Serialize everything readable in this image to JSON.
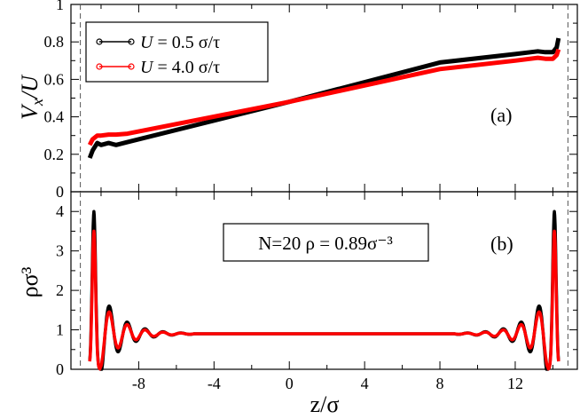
{
  "figure": {
    "xlabel": "z/σ",
    "colors": {
      "black": "#000000",
      "red": "#ff0000"
    }
  },
  "chart_data": [
    {
      "type": "line",
      "panel": "(a)",
      "ylabel_main": "V",
      "ylabel_sub": "x",
      "ylabel_tail": "/U",
      "xlim": [
        -11.6,
        15.3
      ],
      "ylim": [
        0,
        1
      ],
      "x_ticks": [
        -8,
        -4,
        0,
        4,
        8,
        12
      ],
      "y_ticks": [
        0,
        0.2,
        0.4,
        0.6,
        0.8,
        1
      ],
      "y_tick_labels": [
        "0",
        "0.2",
        "0.4",
        "0.6",
        "0.8",
        "1"
      ],
      "walls": [
        -11.1,
        14.8
      ],
      "legend": {
        "position": "top-left",
        "entries": [
          {
            "prefix": "U",
            "text": " = 0.5 σ/τ",
            "color": "#000000"
          },
          {
            "prefix": "U",
            "text": " = 4.0 σ/τ",
            "color": "#ff0000"
          }
        ]
      },
      "series": [
        {
          "name": "U = 0.5 σ/τ",
          "color": "#000000",
          "x": [
            -10.6,
            -10.45,
            -10.2,
            -10.0,
            -9.6,
            -9.2,
            -8.6,
            0,
            8,
            12,
            13.2,
            13.6,
            14.0,
            14.2,
            14.3
          ],
          "y": [
            0.18,
            0.22,
            0.26,
            0.25,
            0.26,
            0.25,
            0.265,
            0.48,
            0.69,
            0.735,
            0.75,
            0.745,
            0.745,
            0.77,
            0.82
          ]
        },
        {
          "name": "U = 4.0 σ/τ",
          "color": "#ff0000",
          "x": [
            -10.6,
            -10.45,
            -10.2,
            -10.0,
            -9.6,
            -9.2,
            -8.6,
            0,
            8,
            12,
            13.2,
            13.6,
            14.0,
            14.2,
            14.3
          ],
          "y": [
            0.25,
            0.28,
            0.3,
            0.3,
            0.305,
            0.305,
            0.31,
            0.48,
            0.655,
            0.7,
            0.715,
            0.71,
            0.71,
            0.73,
            0.76
          ]
        }
      ]
    },
    {
      "type": "line",
      "panel": "(b)",
      "ylabel": "ρσ³",
      "xlim": [
        -11.6,
        15.3
      ],
      "ylim": [
        0,
        4.5
      ],
      "x_ticks": [
        -8,
        -4,
        0,
        4,
        8,
        12
      ],
      "x_tick_labels": [
        "-8",
        "-4",
        "0",
        "4",
        "8",
        "12"
      ],
      "y_ticks": [
        0,
        1,
        2,
        3,
        4
      ],
      "y_tick_labels": [
        "0",
        "1",
        "2",
        "3",
        "4"
      ],
      "walls": [
        -11.1,
        14.8
      ],
      "annotation": "N=20  ρ = 0.89σ⁻³",
      "series": [
        {
          "name": "U = 0.5 σ/τ",
          "color": "#000000",
          "contact_peak": 4.0,
          "second_peak": 1.6,
          "bulk": 0.9
        },
        {
          "name": "U = 4.0 σ/τ",
          "color": "#ff0000",
          "contact_peak": 3.5,
          "second_peak": 1.45,
          "bulk": 0.9
        }
      ]
    }
  ]
}
